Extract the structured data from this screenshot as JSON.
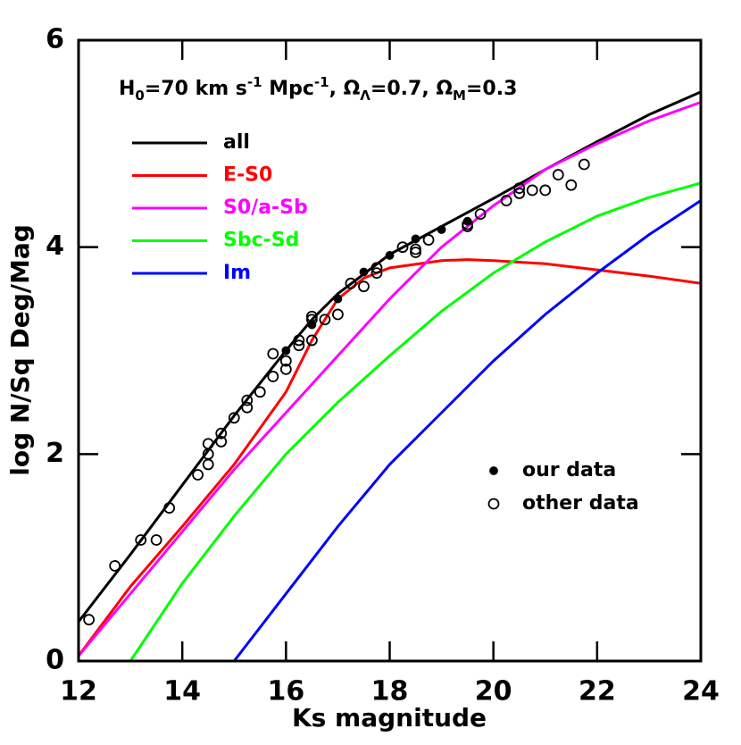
{
  "chart_data": {
    "type": "line",
    "xlabel": "Ks magnitude",
    "ylabel": "log N/Sq Deg/Mag",
    "annotation": [
      "H",
      "0",
      "=70 km s",
      "-1",
      " Mpc",
      "-1",
      ", Ω",
      "Λ",
      "=0.7, Ω",
      "M",
      "=0.3"
    ],
    "xlim": [
      12,
      24
    ],
    "ylim": [
      0,
      6
    ],
    "xticks": [
      12,
      14,
      16,
      18,
      20,
      22,
      24
    ],
    "yticks": [
      0,
      2,
      4,
      6
    ],
    "series": [
      {
        "name": "all",
        "color": "#000000",
        "x": [
          12,
          13,
          14,
          15,
          16,
          16.5,
          17,
          18,
          19,
          20,
          21,
          22,
          23,
          24
        ],
        "values": [
          0.38,
          1.03,
          1.7,
          2.37,
          3.0,
          3.3,
          3.55,
          3.93,
          4.2,
          4.47,
          4.75,
          5.02,
          5.28,
          5.5
        ]
      },
      {
        "name": "E-S0",
        "color": "#ff0000",
        "x": [
          12,
          13,
          14,
          15,
          16,
          16.5,
          17,
          17.5,
          18,
          19,
          19.5,
          20,
          21,
          22,
          23,
          24
        ],
        "values": [
          0.05,
          0.72,
          1.3,
          1.9,
          2.6,
          3.1,
          3.5,
          3.7,
          3.8,
          3.87,
          3.88,
          3.87,
          3.84,
          3.78,
          3.72,
          3.65
        ]
      },
      {
        "name": "S0/a-Sb",
        "color": "#ff00ff",
        "x": [
          12,
          13,
          14,
          15,
          16,
          17,
          18,
          19,
          20,
          21,
          22,
          23,
          24
        ],
        "values": [
          0.05,
          0.65,
          1.25,
          1.85,
          2.4,
          2.95,
          3.5,
          4.0,
          4.4,
          4.75,
          5.0,
          5.22,
          5.4
        ]
      },
      {
        "name": "Sbc-Sd",
        "color": "#00ff00",
        "x": [
          13,
          14,
          15,
          16,
          17,
          18,
          19,
          20,
          21,
          22,
          23,
          24
        ],
        "values": [
          0,
          0.75,
          1.4,
          2.0,
          2.5,
          2.95,
          3.38,
          3.75,
          4.05,
          4.3,
          4.48,
          4.62
        ]
      },
      {
        "name": "Im",
        "color": "#0000ff",
        "x": [
          15,
          16,
          17,
          18,
          19,
          20,
          21,
          22,
          23,
          24
        ],
        "values": [
          0,
          0.65,
          1.3,
          1.9,
          2.4,
          2.9,
          3.35,
          3.75,
          4.12,
          4.45
        ]
      }
    ],
    "points": [
      {
        "name": "our data",
        "filled": true,
        "x": [
          16,
          16.5,
          17,
          17.5,
          18,
          18.5,
          19,
          19.5
        ],
        "values": [
          3.0,
          3.25,
          3.5,
          3.76,
          3.92,
          4.08,
          4.17,
          4.25
        ]
      },
      {
        "name": "other data",
        "filled": false,
        "x": [
          12.2,
          12.7,
          13.2,
          13.5,
          13.75,
          14.3,
          14.5,
          14.5,
          14.5,
          14.75,
          14.75,
          15,
          15.25,
          15.25,
          15.5,
          15.75,
          15.75,
          16,
          16,
          16.25,
          16.25,
          16.5,
          16.5,
          16.5,
          16.75,
          17,
          17.25,
          17.5,
          17.75,
          17.75,
          18.25,
          18.5,
          18.5,
          18.75,
          19.5,
          19.5,
          19.75,
          20.25,
          20.5,
          20.5,
          20.75,
          21,
          21.25,
          21.5,
          21.75
        ],
        "values": [
          0.4,
          0.92,
          1.17,
          1.17,
          1.48,
          1.8,
          1.9,
          2.0,
          2.1,
          2.12,
          2.2,
          2.35,
          2.45,
          2.52,
          2.6,
          2.75,
          2.97,
          2.82,
          2.9,
          3.05,
          3.1,
          3.1,
          3.3,
          3.33,
          3.3,
          3.35,
          3.65,
          3.62,
          3.75,
          3.8,
          4.0,
          3.95,
          3.98,
          4.07,
          4.2,
          4.22,
          4.32,
          4.45,
          4.52,
          4.57,
          4.55,
          4.55,
          4.7,
          4.6,
          4.8
        ]
      }
    ]
  }
}
